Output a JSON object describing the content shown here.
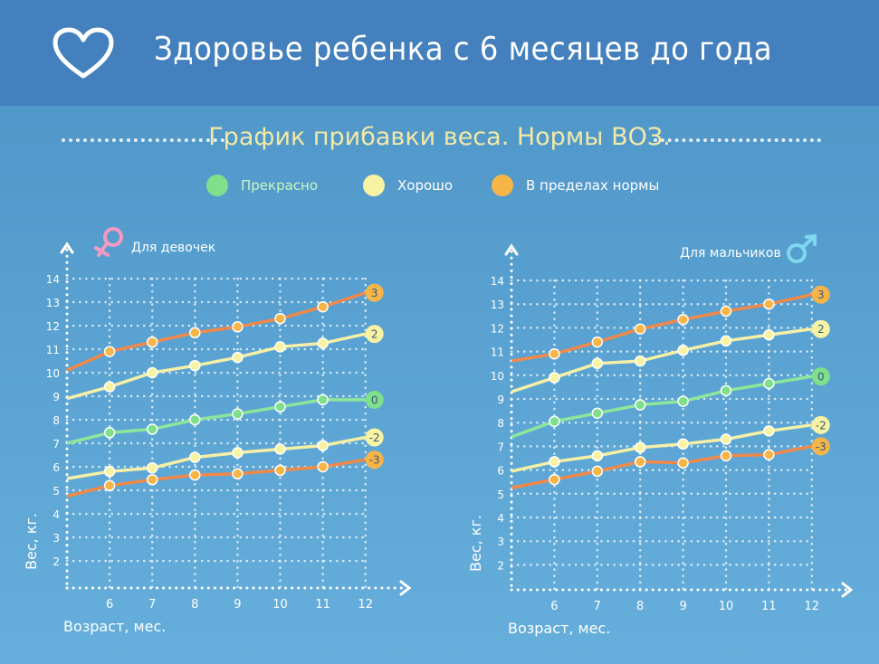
{
  "header": {
    "title": "Здоровье ребенка с 6 месяцев до года"
  },
  "subtitle": "График прибавки веса. Нормы ВОЗ.",
  "legend": [
    {
      "label": "Прекрасно",
      "color": "#7ee08a",
      "text_color": "#c9f5c0"
    },
    {
      "label": "Хорошо",
      "color": "#f7f3a2",
      "text_color": "#ffffff"
    },
    {
      "label": "В пределах нормы",
      "color": "#f7b548",
      "text_color": "#ffffff"
    }
  ],
  "colors": {
    "orange_line": "#f0894a",
    "yellow_line": "#f5f0a6",
    "green_line": "#8ee69a",
    "grid": "#ffffff",
    "header_bg": "#4380bd",
    "girl_icon": "#f59ac0",
    "boy_icon": "#7fd8ee"
  },
  "chart_data": [
    {
      "type": "line",
      "title": "Для девочек",
      "xlabel": "Возраст, мес.",
      "ylabel": "Вес, кг.",
      "x": [
        5,
        6,
        7,
        8,
        9,
        10,
        11,
        12
      ],
      "x_ticks": [
        "6",
        "7",
        "8",
        "9",
        "10",
        "11",
        "12"
      ],
      "y_ticks": [
        "2",
        "3",
        "4",
        "5",
        "6",
        "7",
        "8",
        "9",
        "10",
        "11",
        "12",
        "13",
        "14"
      ],
      "ylim": [
        1,
        14.5
      ],
      "grid": true,
      "series": [
        {
          "name": "3",
          "level": "В пределах нормы",
          "color": "#f0894a",
          "point": "#f7b548",
          "values": [
            10.1,
            10.9,
            11.3,
            11.7,
            11.95,
            12.3,
            12.8,
            13.4
          ]
        },
        {
          "name": "2",
          "level": "Хорошо",
          "color": "#f5f0a6",
          "point": "#f7f3a2",
          "values": [
            8.9,
            9.4,
            10.0,
            10.3,
            10.65,
            11.1,
            11.25,
            11.65
          ]
        },
        {
          "name": "0",
          "level": "Прекрасно",
          "color": "#8ee69a",
          "point": "#7ee08a",
          "values": [
            7.0,
            7.45,
            7.6,
            8.0,
            8.25,
            8.55,
            8.85,
            8.85
          ]
        },
        {
          "name": "-2",
          "level": "Хорошо",
          "color": "#f5f0a6",
          "point": "#f7f3a2",
          "values": [
            5.5,
            5.8,
            5.95,
            6.4,
            6.6,
            6.75,
            6.9,
            7.25
          ]
        },
        {
          "name": "-3",
          "level": "В пределах нормы",
          "color": "#f0894a",
          "point": "#f7b548",
          "values": [
            4.75,
            5.2,
            5.45,
            5.65,
            5.7,
            5.85,
            6.0,
            6.3
          ]
        }
      ]
    },
    {
      "type": "line",
      "title": "Для мальчиков",
      "xlabel": "Возраст, мес.",
      "ylabel": "Вес, кг.",
      "x": [
        5,
        6,
        7,
        8,
        9,
        10,
        11,
        12
      ],
      "x_ticks": [
        "6",
        "7",
        "8",
        "9",
        "10",
        "11",
        "12"
      ],
      "y_ticks": [
        "2",
        "3",
        "4",
        "5",
        "6",
        "7",
        "8",
        "9",
        "10",
        "11",
        "12",
        "13",
        "14"
      ],
      "ylim": [
        1,
        14.5
      ],
      "grid": true,
      "series": [
        {
          "name": "3",
          "level": "В пределах нормы",
          "color": "#f0894a",
          "point": "#f7b548",
          "values": [
            10.6,
            10.9,
            11.4,
            11.95,
            12.35,
            12.7,
            13.0,
            13.4
          ]
        },
        {
          "name": "2",
          "level": "Хорошо",
          "color": "#f5f0a6",
          "point": "#f7f3a2",
          "values": [
            9.3,
            9.9,
            10.5,
            10.6,
            11.05,
            11.45,
            11.7,
            11.95
          ]
        },
        {
          "name": "0",
          "level": "Прекрасно",
          "color": "#8ee69a",
          "point": "#7ee08a",
          "values": [
            7.4,
            8.05,
            8.4,
            8.75,
            8.9,
            9.35,
            9.65,
            9.95
          ]
        },
        {
          "name": "-2",
          "level": "Хорошо",
          "color": "#f5f0a6",
          "point": "#f7f3a2",
          "values": [
            5.95,
            6.35,
            6.6,
            6.95,
            7.1,
            7.3,
            7.65,
            7.9
          ]
        },
        {
          "name": "-3",
          "level": "В пределах нормы",
          "color": "#f0894a",
          "point": "#f7b548",
          "values": [
            5.25,
            5.6,
            5.95,
            6.35,
            6.3,
            6.6,
            6.65,
            7.0
          ]
        }
      ]
    }
  ]
}
